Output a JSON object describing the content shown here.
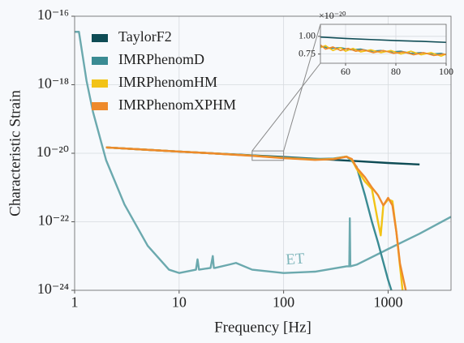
{
  "chart_data": [
    {
      "type": "line",
      "xlabel": "Frequency [Hz]",
      "ylabel": "Characteristic Strain",
      "xscale": "log",
      "yscale": "log",
      "xlim": [
        1,
        4000
      ],
      "ylim": [
        1e-24,
        1e-16
      ],
      "xticks": [
        1,
        10,
        100,
        1000
      ],
      "yticks": [
        {
          "value": 1e-24,
          "label": "10⁻²⁴"
        },
        {
          "value": 1e-22,
          "label": "10⁻²²"
        },
        {
          "value": 1e-20,
          "label": "10⁻²⁰"
        },
        {
          "value": 1e-18,
          "label": "10⁻¹⁸"
        },
        {
          "value": 1e-16,
          "label": "10⁻¹⁶"
        }
      ],
      "grid": true,
      "legend": "upper left",
      "series": [
        {
          "name": "ET",
          "color": "#6ba9ae",
          "legend": false,
          "x": [
            1,
            1.1,
            1.2,
            1.3,
            1.5,
            2,
            3,
            5,
            8,
            10,
            14.5,
            15,
            15.5,
            20,
            21,
            21.5,
            22,
            30,
            35,
            50,
            100,
            200,
            400,
            425,
            430,
            435,
            500,
            1000,
            2000,
            4000
          ],
          "values": [
            3.5e-17,
            3.5e-17,
            6.3e-18,
            1.3e-18,
            1.6e-19,
            6.3e-21,
            3.2e-22,
            2e-23,
            4e-24,
            3.2e-24,
            4e-24,
            8e-24,
            4e-24,
            4.5e-24,
            1e-23,
            4.5e-24,
            4.5e-24,
            5.6e-24,
            6.3e-24,
            4e-24,
            3.2e-24,
            3.5e-24,
            5e-24,
            5e-24,
            1.26e-22,
            5e-24,
            5.6e-24,
            1.6e-23,
            4.5e-23,
            1.4e-22
          ]
        },
        {
          "name": "TaylorF2",
          "color": "#0e4c55",
          "x": [
            2,
            5,
            10,
            20,
            50,
            100,
            200,
            500,
            1000,
            2000
          ],
          "values": [
            1.48e-20,
            1.26e-20,
            1.12e-20,
            1e-20,
            8.7e-21,
            7.8e-21,
            6.9e-21,
            5.9e-21,
            5.2e-21,
            4.7e-21
          ]
        },
        {
          "name": "IMRPhenomD",
          "color": "#3a8b93",
          "x": [
            2,
            5,
            10,
            20,
            50,
            100,
            200,
            300,
            400,
            450,
            500,
            600,
            700,
            800,
            1000,
            1100
          ],
          "values": [
            1.48e-20,
            1.26e-20,
            1.12e-20,
            1e-20,
            8.6e-21,
            7.5e-21,
            6.8e-21,
            7e-21,
            8e-21,
            6e-21,
            4e-21,
            6e-22,
            1e-22,
            2.5e-23,
            2e-24,
            8e-25
          ]
        },
        {
          "name": "IMRPhenomHM",
          "color": "#f2c316",
          "x": [
            2,
            5,
            10,
            20,
            50,
            100,
            200,
            300,
            400,
            450,
            500,
            600,
            700,
            800,
            850,
            900,
            1000,
            1100,
            1200,
            1300,
            1400
          ],
          "values": [
            1.48e-20,
            1.26e-20,
            1.12e-20,
            1e-20,
            8.5e-21,
            7.3e-21,
            6.5e-21,
            6.8e-21,
            8e-21,
            6.5e-21,
            3.5e-21,
            1.5e-21,
            9e-22,
            1e-22,
            4e-23,
            3e-22,
            4.5e-22,
            4e-22,
            5e-23,
            5e-24,
            6e-25
          ]
        },
        {
          "name": "IMRPhenomXPHM",
          "color": "#ee8a2b",
          "x": [
            2,
            5,
            10,
            20,
            50,
            100,
            200,
            300,
            400,
            450,
            500,
            600,
            700,
            800,
            900,
            1000,
            1100,
            1200,
            1300,
            1500
          ],
          "values": [
            1.48e-20,
            1.26e-20,
            1.12e-20,
            1e-20,
            8.4e-21,
            7.2e-21,
            6.4e-21,
            6.7e-21,
            7.9e-21,
            6.8e-21,
            3.8e-21,
            2e-21,
            1e-21,
            6e-22,
            3e-22,
            5e-22,
            3e-22,
            5e-23,
            6e-24,
            8e-25
          ]
        }
      ]
    },
    {
      "type": "line",
      "xlim": [
        50,
        100
      ],
      "ylim": [
        0.62,
        1.17
      ],
      "xticks": [
        60,
        80,
        100
      ],
      "yticks": [
        {
          "value": 0.75,
          "label": "0.75"
        },
        {
          "value": 1.0,
          "label": "1.00"
        }
      ],
      "y_scale": {
        "value": 1e-20,
        "label": "×10⁻²⁰"
      },
      "grid": true,
      "series": [
        {
          "name": "TaylorF2",
          "color": "#0e4c55",
          "x": [
            50,
            60,
            70,
            80,
            90,
            100
          ],
          "values": [
            0.99,
            0.97,
            0.955,
            0.94,
            0.93,
            0.915
          ]
        },
        {
          "name": "IMRPhenomD",
          "color": "#3a8b93",
          "x": [
            50,
            54,
            58,
            62,
            66,
            70,
            74,
            78,
            82,
            86,
            90,
            94,
            98,
            100
          ],
          "values": [
            0.86,
            0.83,
            0.84,
            0.81,
            0.82,
            0.79,
            0.8,
            0.78,
            0.79,
            0.76,
            0.77,
            0.75,
            0.76,
            0.74
          ]
        },
        {
          "name": "IMRPhenomHM",
          "color": "#f2c316",
          "x": [
            50,
            52,
            55,
            58,
            60,
            63,
            66,
            70,
            74,
            78,
            82,
            86,
            90,
            94,
            98,
            100
          ],
          "values": [
            0.84,
            0.87,
            0.8,
            0.84,
            0.79,
            0.83,
            0.78,
            0.81,
            0.77,
            0.8,
            0.75,
            0.79,
            0.74,
            0.77,
            0.72,
            0.75
          ]
        },
        {
          "name": "IMRPhenomXPHM",
          "color": "#ee8a2b",
          "x": [
            50,
            52,
            55,
            58,
            61,
            64,
            67,
            71,
            75,
            79,
            83,
            87,
            91,
            95,
            99,
            100
          ],
          "values": [
            0.88,
            0.82,
            0.85,
            0.8,
            0.83,
            0.79,
            0.81,
            0.77,
            0.8,
            0.76,
            0.78,
            0.74,
            0.77,
            0.73,
            0.75,
            0.74
          ]
        }
      ]
    }
  ]
}
